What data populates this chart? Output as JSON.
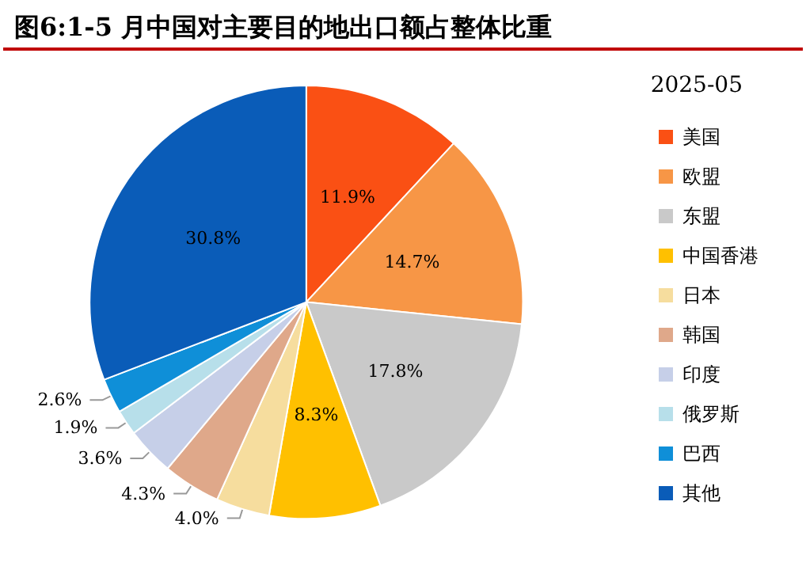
{
  "chart_data": {
    "type": "pie",
    "title": "图6:1-5 月中国对主要目的地出口额占整体比重",
    "legend_title": "2025-05",
    "categories": [
      "美国",
      "欧盟",
      "东盟",
      "中国香港",
      "日本",
      "韩国",
      "印度",
      "俄罗斯",
      "巴西",
      "其他"
    ],
    "values": [
      11.9,
      14.7,
      17.8,
      8.3,
      4.0,
      4.3,
      3.6,
      1.9,
      2.6,
      30.8
    ],
    "colors": [
      "#fa5014",
      "#f79646",
      "#c9c9c9",
      "#ffc000",
      "#f6dd9e",
      "#dfa88a",
      "#c6cfe8",
      "#b7dfea",
      "#0f8fd8",
      "#0a5cb8"
    ],
    "value_labels": [
      "11.9%",
      "14.7%",
      "17.8%",
      "8.3%",
      "4.0%",
      "4.3%",
      "3.6%",
      "1.9%",
      "2.6%",
      "30.8%"
    ],
    "legend": "right"
  }
}
